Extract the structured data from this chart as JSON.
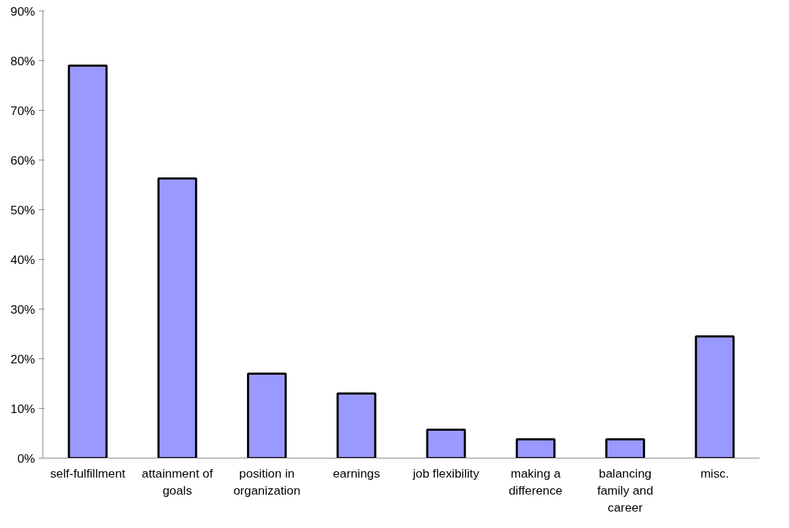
{
  "chart_data": {
    "type": "bar",
    "categories": [
      "self-fulfillment",
      "attainment of goals",
      "position in organization",
      "earnings",
      "job flexibility",
      "making a difference",
      "balancing family and career",
      "misc."
    ],
    "values": [
      79,
      56.3,
      17,
      13,
      5.7,
      3.8,
      3.8,
      24.5
    ],
    "color": "#9999ff",
    "ylim": [
      0,
      90
    ],
    "yticks": [
      {
        "value": 0,
        "label": "0%"
      },
      {
        "value": 10,
        "label": "10%"
      },
      {
        "value": 20,
        "label": "20%"
      },
      {
        "value": 30,
        "label": "30%"
      },
      {
        "value": 40,
        "label": "40%"
      },
      {
        "value": 50,
        "label": "50%"
      },
      {
        "value": 60,
        "label": "60%"
      },
      {
        "value": 70,
        "label": "70%"
      },
      {
        "value": 80,
        "label": "80%"
      },
      {
        "value": 90,
        "label": "90%"
      }
    ],
    "grid": false
  }
}
